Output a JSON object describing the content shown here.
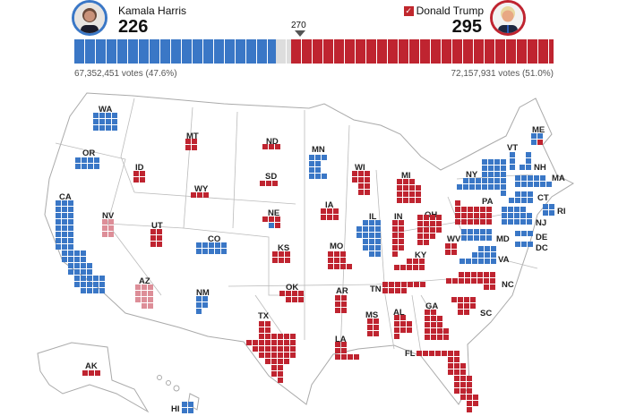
{
  "colors": {
    "dem": "#3a77c6",
    "rep": "#bf2430",
    "dem_lean": "#8fb2de",
    "rep_lean": "#dd8e98",
    "uncalled": "#dddddd"
  },
  "header": {
    "harris": {
      "name": "Kamala Harris",
      "electoral_votes": "226",
      "popular": "67,352,451 votes (47.6%)",
      "photo_icon": "candidate-photo"
    },
    "trump": {
      "name": "Donald Trump",
      "electoral_votes": "295",
      "popular": "72,157,931 votes (51.0%)",
      "winner_check": "✓",
      "photo_icon": "candidate-photo"
    },
    "threshold": "270"
  },
  "bar": {
    "dem": 226,
    "uncalled": 17,
    "rep": 295,
    "total": 538
  },
  "states": [
    {
      "abbr": "WA",
      "party": "dem",
      "ev": 12
    },
    {
      "abbr": "OR",
      "party": "dem",
      "ev": 8
    },
    {
      "abbr": "CA",
      "party": "dem",
      "ev": 54
    },
    {
      "abbr": "ID",
      "party": "rep",
      "ev": 4
    },
    {
      "abbr": "MT",
      "party": "rep",
      "ev": 4
    },
    {
      "abbr": "ND",
      "party": "rep",
      "ev": 3
    },
    {
      "abbr": "SD",
      "party": "rep",
      "ev": 3
    },
    {
      "abbr": "WY",
      "party": "rep",
      "ev": 3
    },
    {
      "abbr": "NV",
      "party": "rep_lean",
      "ev": 6
    },
    {
      "abbr": "UT",
      "party": "rep",
      "ev": 6
    },
    {
      "abbr": "CO",
      "party": "dem",
      "ev": 10
    },
    {
      "abbr": "NE",
      "party": "split",
      "ev": 5,
      "split": {
        "rep": 4,
        "dem": 1
      }
    },
    {
      "abbr": "KS",
      "party": "rep",
      "ev": 6
    },
    {
      "abbr": "OK",
      "party": "rep",
      "ev": 7
    },
    {
      "abbr": "AZ",
      "party": "rep_lean",
      "ev": 11
    },
    {
      "abbr": "NM",
      "party": "dem",
      "ev": 5
    },
    {
      "abbr": "TX",
      "party": "rep",
      "ev": 40
    },
    {
      "abbr": "AK",
      "party": "rep",
      "ev": 3
    },
    {
      "abbr": "HI",
      "party": "dem",
      "ev": 4
    },
    {
      "abbr": "MN",
      "party": "dem",
      "ev": 10
    },
    {
      "abbr": "WI",
      "party": "rep",
      "ev": 10
    },
    {
      "abbr": "MI",
      "party": "rep",
      "ev": 15
    },
    {
      "abbr": "IA",
      "party": "rep",
      "ev": 6
    },
    {
      "abbr": "IL",
      "party": "dem",
      "ev": 19
    },
    {
      "abbr": "IN",
      "party": "rep",
      "ev": 11
    },
    {
      "abbr": "OH",
      "party": "rep",
      "ev": 17
    },
    {
      "abbr": "WV",
      "party": "rep",
      "ev": 4
    },
    {
      "abbr": "KY",
      "party": "rep",
      "ev": 8
    },
    {
      "abbr": "TN",
      "party": "rep",
      "ev": 11
    },
    {
      "abbr": "MO",
      "party": "rep",
      "ev": 10
    },
    {
      "abbr": "AR",
      "party": "rep",
      "ev": 6
    },
    {
      "abbr": "LA",
      "party": "rep",
      "ev": 8
    },
    {
      "abbr": "MS",
      "party": "rep",
      "ev": 6
    },
    {
      "abbr": "AL",
      "party": "rep",
      "ev": 9
    },
    {
      "abbr": "GA",
      "party": "rep",
      "ev": 16
    },
    {
      "abbr": "SC",
      "party": "rep",
      "ev": 9
    },
    {
      "abbr": "FL",
      "party": "rep",
      "ev": 30
    },
    {
      "abbr": "PA",
      "party": "rep",
      "ev": 19
    },
    {
      "abbr": "NY",
      "party": "dem",
      "ev": 28
    },
    {
      "abbr": "VT",
      "party": "dem",
      "ev": 3
    },
    {
      "abbr": "NH",
      "party": "dem",
      "ev": 4
    },
    {
      "abbr": "ME",
      "party": "split",
      "ev": 4,
      "split": {
        "dem": 3,
        "rep": 1
      }
    },
    {
      "abbr": "MA",
      "party": "dem",
      "ev": 11
    },
    {
      "abbr": "CT",
      "party": "dem",
      "ev": 7
    },
    {
      "abbr": "RI",
      "party": "dem",
      "ev": 4
    },
    {
      "abbr": "NJ",
      "party": "dem",
      "ev": 14
    },
    {
      "abbr": "DE",
      "party": "dem",
      "ev": 3
    },
    {
      "abbr": "DC",
      "party": "dem",
      "ev": 3
    },
    {
      "abbr": "MD",
      "party": "dem",
      "ev": 10
    },
    {
      "abbr": "VA",
      "party": "dem",
      "ev": 13
    },
    {
      "abbr": "NC",
      "party": "rep",
      "ev": 16
    }
  ]
}
